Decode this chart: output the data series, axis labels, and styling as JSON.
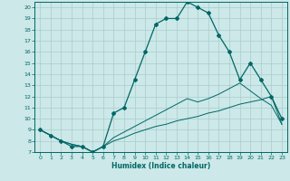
{
  "xlabel": "Humidex (Indice chaleur)",
  "background_color": "#cce8e8",
  "grid_color": "#aacccc",
  "line_color": "#006666",
  "xlim": [
    -0.5,
    23.5
  ],
  "ylim": [
    7,
    20.5
  ],
  "xticks": [
    0,
    1,
    2,
    3,
    4,
    5,
    6,
    7,
    8,
    9,
    10,
    11,
    12,
    13,
    14,
    15,
    16,
    17,
    18,
    19,
    20,
    21,
    22,
    23
  ],
  "yticks": [
    7,
    8,
    9,
    10,
    11,
    12,
    13,
    14,
    15,
    16,
    17,
    18,
    19,
    20
  ],
  "line_main_x": [
    0,
    1,
    2,
    3,
    4,
    5,
    6,
    7,
    8,
    9,
    10,
    11,
    12,
    13,
    14,
    15,
    16,
    17,
    18,
    19,
    20,
    21,
    22,
    23
  ],
  "line_main_y": [
    9,
    8.5,
    8,
    7.5,
    7.5,
    7,
    7.5,
    10.5,
    11,
    13.5,
    16,
    18.5,
    19,
    19,
    20.5,
    20,
    19.5,
    17.5,
    16,
    13.5,
    15,
    13.5,
    12,
    10
  ],
  "line_mid_x": [
    0,
    1,
    2,
    3,
    4,
    5,
    6,
    7,
    8,
    9,
    10,
    11,
    12,
    13,
    14,
    15,
    16,
    17,
    18,
    19,
    20,
    21,
    22,
    23
  ],
  "line_mid_y": [
    9,
    8.5,
    8,
    7.7,
    7.5,
    7.0,
    7.5,
    8.3,
    8.8,
    9.3,
    9.8,
    10.3,
    10.8,
    11.3,
    11.8,
    11.5,
    11.8,
    12.2,
    12.7,
    13.2,
    12.5,
    11.8,
    11.2,
    9.5
  ],
  "line_bot_x": [
    0,
    1,
    2,
    3,
    4,
    5,
    6,
    7,
    8,
    9,
    10,
    11,
    12,
    13,
    14,
    15,
    16,
    17,
    18,
    19,
    20,
    21,
    22,
    23
  ],
  "line_bot_y": [
    9,
    8.5,
    8,
    7.7,
    7.5,
    7.0,
    7.5,
    8.0,
    8.3,
    8.7,
    9.0,
    9.3,
    9.5,
    9.8,
    10.0,
    10.2,
    10.5,
    10.7,
    11.0,
    11.3,
    11.5,
    11.7,
    12.0,
    9.5
  ]
}
